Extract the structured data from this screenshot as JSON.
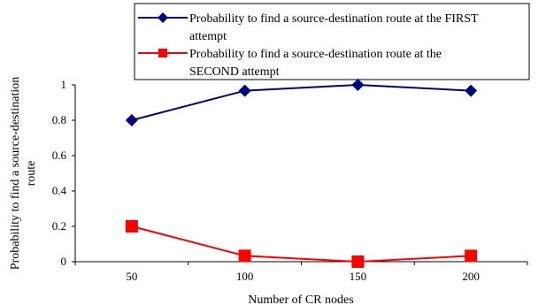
{
  "chart_data": {
    "type": "line",
    "categories": [
      "50",
      "100",
      "150",
      "200"
    ],
    "x": [
      50,
      100,
      150,
      200
    ],
    "series": [
      {
        "name": "Probability to find a source-destination route at the FIRST attempt",
        "legend_lines": [
          "Probability to find a source-destination route at the FIRST",
          "attempt"
        ],
        "values": [
          0.8,
          0.967,
          1.0,
          0.967
        ],
        "color": "#000080",
        "marker": "diamond"
      },
      {
        "name": "Probability to find a source-destination route at the SECOND attempt",
        "legend_lines": [
          "Probability to find a source-destination route at the",
          "SECOND attempt"
        ],
        "values": [
          0.2,
          0.033,
          0.0,
          0.033
        ],
        "color": "#ff0000",
        "marker": "square"
      }
    ],
    "xlabel": "Number of CR nodes",
    "ylabel_lines": [
      "Probability to find a source-destination",
      "route"
    ],
    "ylim": [
      0,
      1
    ],
    "yticks": [
      "0",
      "0.2",
      "0.4",
      "0.6",
      "0.8",
      "1"
    ],
    "grid": false,
    "legend_position": "top"
  }
}
